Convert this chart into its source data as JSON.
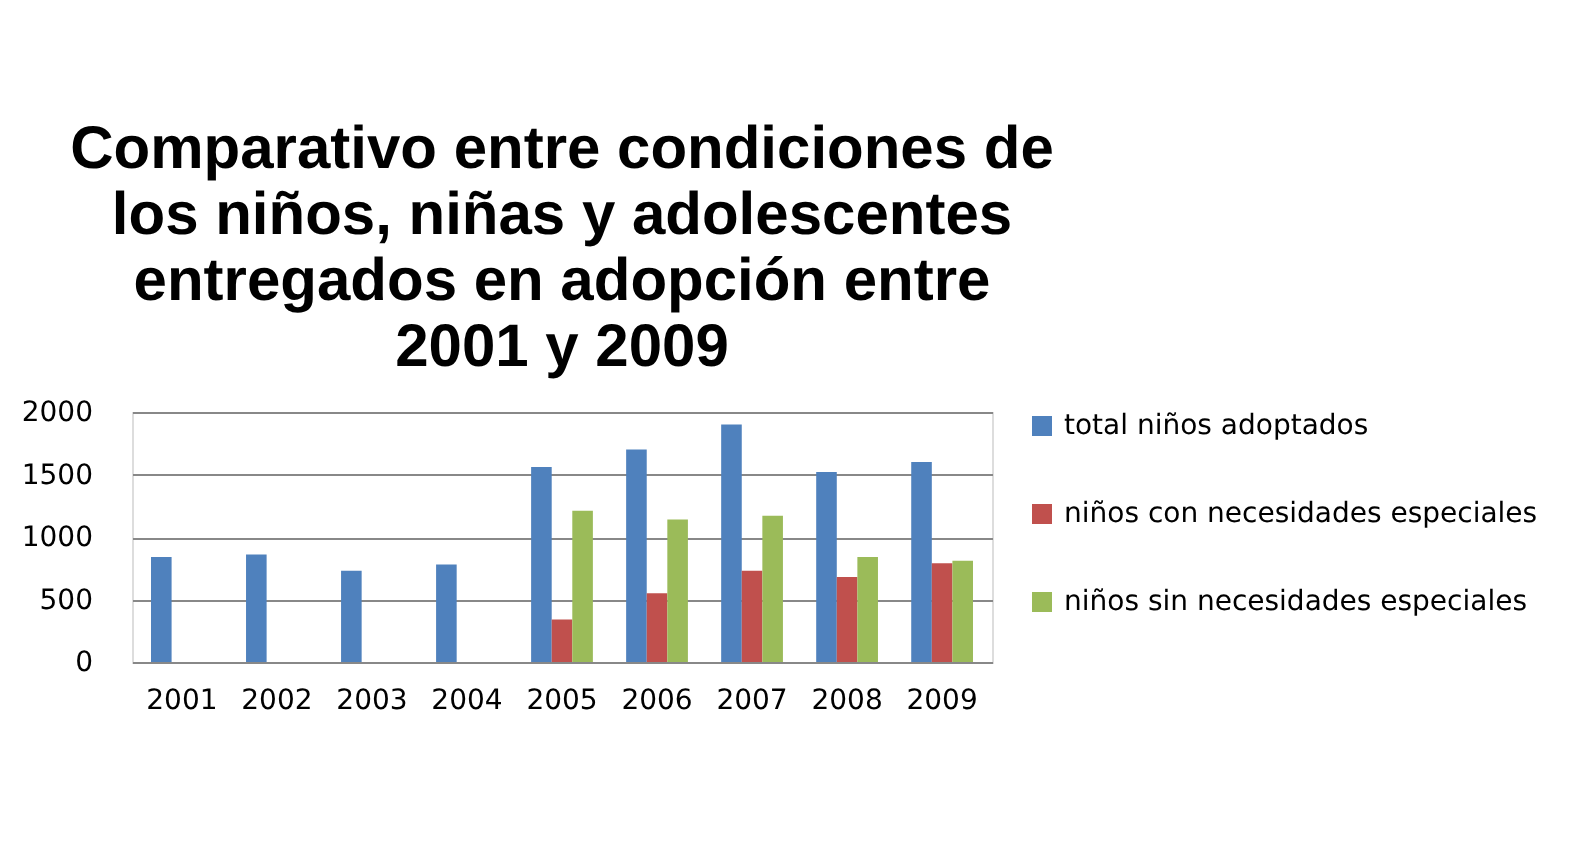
{
  "chart_data": {
    "type": "bar",
    "title": [
      "Comparativo entre condiciones de",
      "los niños, niñas y adolescentes",
      "entregados en adopción entre",
      "2001 y 2009"
    ],
    "categories": [
      "2001",
      "2002",
      "2003",
      "2004",
      "2005",
      "2006",
      "2007",
      "2008",
      "2009"
    ],
    "series": [
      {
        "name": "total niños adoptados",
        "color": "#4f81bd",
        "values": [
          840,
          860,
          730,
          780,
          1560,
          1700,
          1900,
          1520,
          1600
        ]
      },
      {
        "name": "niños con necesidades especiales",
        "color": "#c0504d",
        "values": [
          null,
          null,
          null,
          null,
          340,
          550,
          730,
          680,
          790
        ]
      },
      {
        "name": "niños sin necesidades especiales",
        "color": "#9bbb59",
        "values": [
          null,
          null,
          null,
          null,
          1210,
          1140,
          1170,
          840,
          810
        ]
      }
    ],
    "ylim": [
      0,
      2000
    ],
    "yticks": [
      0,
      500,
      1000,
      1500,
      2000
    ],
    "grid": "y",
    "legend": "right"
  }
}
